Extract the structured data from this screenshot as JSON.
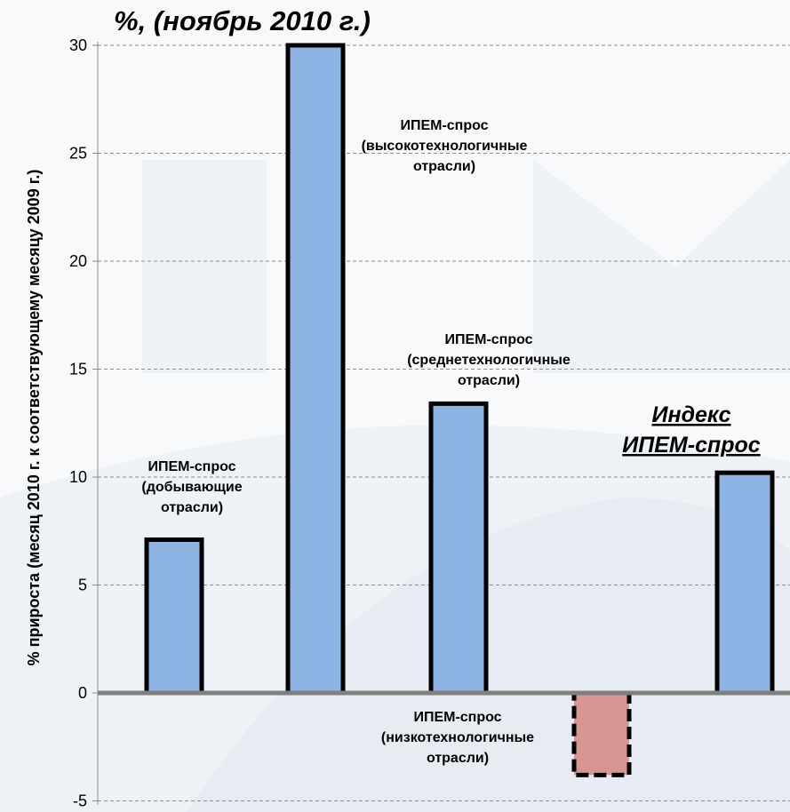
{
  "chart_data": {
    "type": "bar",
    "title": "%,  (ноябрь 2010 г.)",
    "ylabel": "% прироста (месяц 2010 г. к соответствующему  месяцу 2009 г.)",
    "xlabel": "",
    "ylim": [
      -5,
      30
    ],
    "yticks": [
      -5,
      0,
      5,
      10,
      15,
      20,
      25,
      30
    ],
    "grid": true,
    "categories": [
      "ИПЕМ-спрос (добывающие отрасли)",
      "ИПЕМ-спрос (высокотехнологичные отрасли)",
      "ИПЕМ-спрос (среднетехнологичные отрасли)",
      "ИПЕМ-спрос (низкотехнологичные отрасли)",
      "Индекс ИПЕМ-спрос"
    ],
    "values": [
      7.1,
      30.0,
      13.4,
      -3.8,
      10.2
    ],
    "bar_colors": [
      "#8EB4E3",
      "#8EB4E3",
      "#8EB4E3",
      "#D99594",
      "#8EB4E3"
    ],
    "labels": [
      [
        "ИПЕМ-спрос",
        "(добывающие",
        "отрасли)"
      ],
      [
        "ИПЕМ-спрос",
        "(высокотехнологичные",
        "отрасли)"
      ],
      [
        "ИПЕМ-спрос",
        "(среднетехнологичные",
        "отрасли)"
      ],
      [
        "ИПЕМ-спрос",
        "(низкотехнологичные",
        "отрасли)"
      ],
      [
        "Индекс",
        "ИПЕМ-спрос"
      ]
    ]
  },
  "colors": {
    "top_bar": "#4F6B8F",
    "grid": "#8C8C8C",
    "zero_line": "#7F7F7F",
    "bar_border": "#000000"
  }
}
